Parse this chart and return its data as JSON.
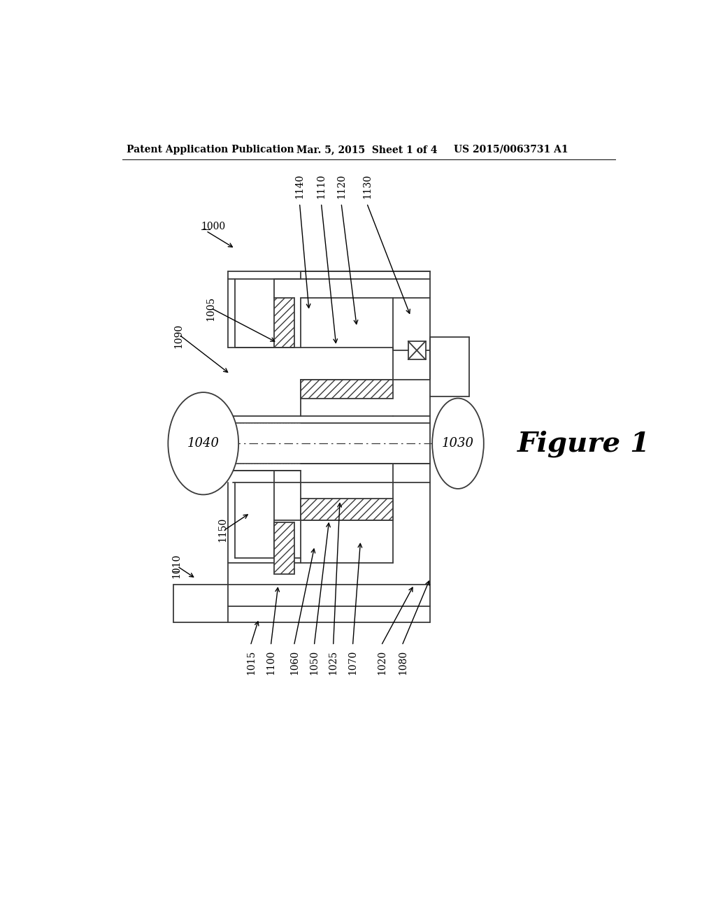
{
  "bg_color": "#ffffff",
  "line_color": "#3a3a3a",
  "header_text": "Patent Application Publication",
  "header_date": "Mar. 5, 2015  Sheet 1 of 4",
  "header_patent": "US 2015/0063731 A1",
  "figure_label": "Figure 1"
}
